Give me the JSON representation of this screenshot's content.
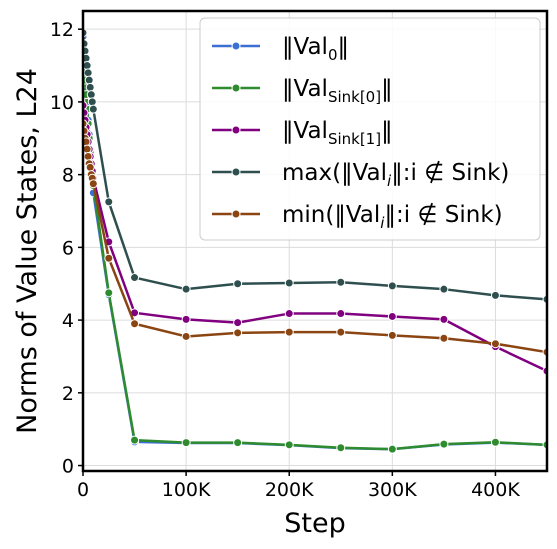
{
  "chart_data": {
    "type": "line",
    "title": "",
    "xlabel": "Step",
    "ylabel": "Norms of Value States, L24",
    "xlim": [
      0,
      450000
    ],
    "ylim": [
      -0.15,
      12.5
    ],
    "grid": true,
    "legend_position": "top-right",
    "x_ticks": [
      {
        "value": 0,
        "label": "0"
      },
      {
        "value": 100000,
        "label": "100K"
      },
      {
        "value": 200000,
        "label": "200K"
      },
      {
        "value": 300000,
        "label": "300K"
      },
      {
        "value": 400000,
        "label": "400K"
      }
    ],
    "y_ticks": [
      {
        "value": 0,
        "label": "0"
      },
      {
        "value": 2,
        "label": "2"
      },
      {
        "value": 4,
        "label": "4"
      },
      {
        "value": 6,
        "label": "6"
      },
      {
        "value": 8,
        "label": "8"
      },
      {
        "value": 10,
        "label": "10"
      },
      {
        "value": 12,
        "label": "12"
      }
    ],
    "series": [
      {
        "key": "val0",
        "legend": {
          "prefix": "‖Val",
          "sub": "0",
          "suffix": "‖"
        },
        "color": "#3B6FD4",
        "points": [
          [
            0,
            11.8
          ],
          [
            1000,
            11.3
          ],
          [
            2000,
            10.8
          ],
          [
            3000,
            10.3
          ],
          [
            4000,
            9.9
          ],
          [
            5000,
            9.5
          ],
          [
            6000,
            9.1
          ],
          [
            7000,
            8.7
          ],
          [
            8000,
            8.3
          ],
          [
            9000,
            7.9
          ],
          [
            10000,
            7.5
          ],
          [
            25000,
            4.7
          ],
          [
            50000,
            0.65
          ],
          [
            100000,
            0.62
          ],
          [
            150000,
            0.62
          ],
          [
            200000,
            0.56
          ],
          [
            250000,
            0.48
          ],
          [
            300000,
            0.45
          ],
          [
            350000,
            0.58
          ],
          [
            400000,
            0.63
          ],
          [
            450000,
            0.57
          ]
        ]
      },
      {
        "key": "sink0",
        "legend": {
          "prefix": "‖Val",
          "sub": "Sink[0]",
          "suffix": "‖"
        },
        "color": "#2E8B2E",
        "points": [
          [
            0,
            11.6
          ],
          [
            1000,
            11.1
          ],
          [
            2000,
            10.6
          ],
          [
            3000,
            10.2
          ],
          [
            4000,
            9.8
          ],
          [
            5000,
            9.4
          ],
          [
            6000,
            9.0
          ],
          [
            7000,
            8.6
          ],
          [
            8000,
            8.3
          ],
          [
            9000,
            8.0
          ],
          [
            10000,
            7.7
          ],
          [
            25000,
            4.75
          ],
          [
            50000,
            0.7
          ],
          [
            100000,
            0.63
          ],
          [
            150000,
            0.63
          ],
          [
            200000,
            0.57
          ],
          [
            250000,
            0.49
          ],
          [
            300000,
            0.45
          ],
          [
            350000,
            0.59
          ],
          [
            400000,
            0.64
          ],
          [
            450000,
            0.57
          ]
        ]
      },
      {
        "key": "sink1",
        "legend": {
          "prefix": "‖Val",
          "sub": "Sink[1]",
          "suffix": "‖"
        },
        "color": "#800080",
        "points": [
          [
            0,
            9.9
          ],
          [
            1000,
            9.7
          ],
          [
            2000,
            9.5
          ],
          [
            3000,
            9.3
          ],
          [
            4000,
            9.1
          ],
          [
            5000,
            8.9
          ],
          [
            6000,
            8.7
          ],
          [
            7000,
            8.5
          ],
          [
            8000,
            8.3
          ],
          [
            9000,
            8.1
          ],
          [
            10000,
            7.9
          ],
          [
            25000,
            6.15
          ],
          [
            50000,
            4.2
          ],
          [
            100000,
            4.02
          ],
          [
            150000,
            3.93
          ],
          [
            200000,
            4.18
          ],
          [
            250000,
            4.18
          ],
          [
            300000,
            4.1
          ],
          [
            350000,
            4.02
          ],
          [
            400000,
            3.27
          ],
          [
            450000,
            2.6
          ]
        ]
      },
      {
        "key": "maxval",
        "legend": {
          "prefix": "max(‖Val",
          "sub": "i",
          "suffix": "‖:i ∉ Sink)"
        },
        "color": "#2F4F4F",
        "points": [
          [
            0,
            11.9
          ],
          [
            1000,
            11.6
          ],
          [
            2000,
            11.4
          ],
          [
            3000,
            11.2
          ],
          [
            4000,
            11.0
          ],
          [
            5000,
            10.8
          ],
          [
            6000,
            10.6
          ],
          [
            7000,
            10.4
          ],
          [
            8000,
            10.2
          ],
          [
            9000,
            10.0
          ],
          [
            10000,
            9.8
          ],
          [
            25000,
            7.25
          ],
          [
            50000,
            5.17
          ],
          [
            100000,
            4.85
          ],
          [
            150000,
            5.0
          ],
          [
            200000,
            5.02
          ],
          [
            250000,
            5.04
          ],
          [
            300000,
            4.94
          ],
          [
            350000,
            4.85
          ],
          [
            400000,
            4.68
          ],
          [
            450000,
            4.57
          ]
        ]
      },
      {
        "key": "minval",
        "legend": {
          "prefix": "min(‖Val",
          "sub": "i",
          "suffix": "‖:i ∉ Sink)"
        },
        "color": "#8B4513",
        "points": [
          [
            0,
            9.4
          ],
          [
            1000,
            9.2
          ],
          [
            2000,
            9.0
          ],
          [
            3000,
            8.9
          ],
          [
            4000,
            8.7
          ],
          [
            5000,
            8.5
          ],
          [
            6000,
            8.3
          ],
          [
            7000,
            8.2
          ],
          [
            8000,
            8.0
          ],
          [
            9000,
            7.9
          ],
          [
            10000,
            7.75
          ],
          [
            25000,
            5.7
          ],
          [
            50000,
            3.9
          ],
          [
            100000,
            3.55
          ],
          [
            150000,
            3.65
          ],
          [
            200000,
            3.67
          ],
          [
            250000,
            3.67
          ],
          [
            300000,
            3.58
          ],
          [
            350000,
            3.5
          ],
          [
            400000,
            3.35
          ],
          [
            450000,
            3.12
          ]
        ]
      }
    ]
  }
}
